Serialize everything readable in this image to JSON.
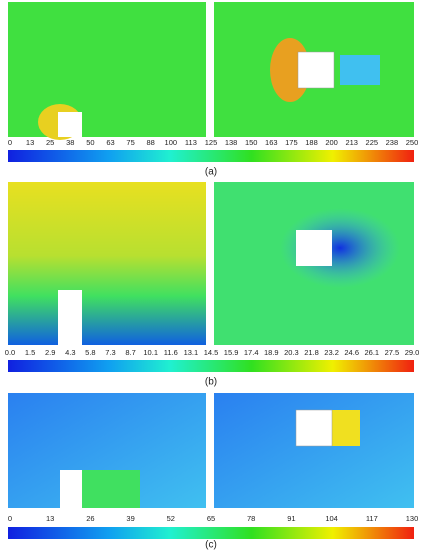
{
  "panels": [
    {
      "ticks": [
        "0",
        "13",
        "25",
        "38",
        "50",
        "63",
        "75",
        "88",
        "100",
        "113",
        "125",
        "138",
        "150",
        "163",
        "175",
        "188",
        "200",
        "213",
        "225",
        "238",
        "250"
      ],
      "caption": "(a)"
    },
    {
      "ticks": [
        "0.0",
        "1.5",
        "2.9",
        "4.3",
        "5.8",
        "7.3",
        "8.7",
        "10.1",
        "11.6",
        "13.1",
        "14.5",
        "15.9",
        "17.4",
        "18.9",
        "20.3",
        "21.8",
        "23.2",
        "24.6",
        "26.1",
        "27.5",
        "29.0"
      ],
      "caption": "(b)"
    },
    {
      "ticks": [
        "0",
        "13",
        "26",
        "39",
        "52",
        "65",
        "78",
        "91",
        "104",
        "117",
        "130"
      ],
      "caption": "(c)"
    }
  ]
}
